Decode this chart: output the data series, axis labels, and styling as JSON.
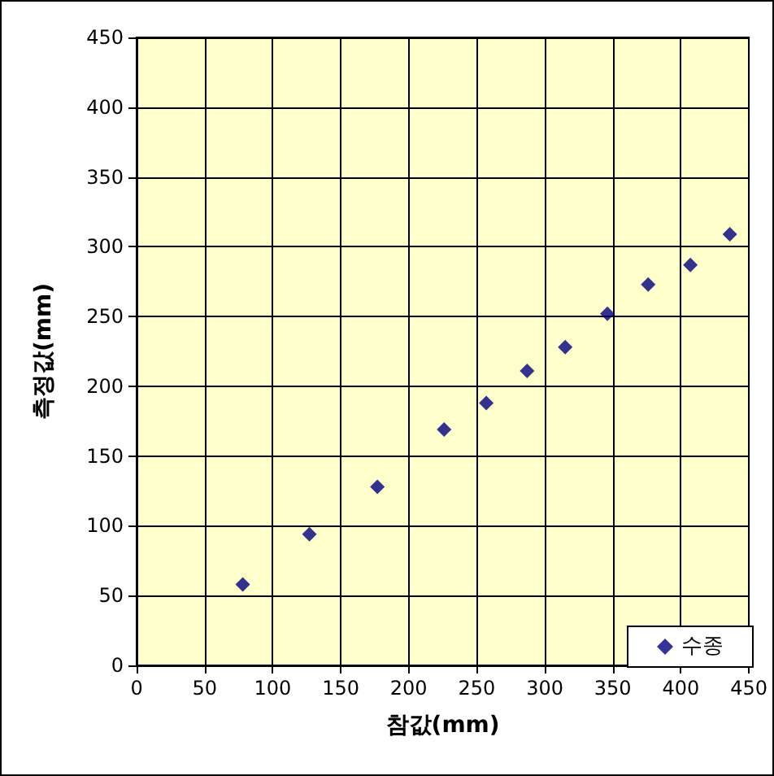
{
  "chart_data": {
    "type": "scatter",
    "xlabel": "참값(mm)",
    "ylabel": "측정값(mm)",
    "xlim": [
      0,
      450
    ],
    "xticks": [
      0,
      50,
      100,
      150,
      200,
      250,
      300,
      350,
      400,
      450
    ],
    "ylim": [
      0,
      450
    ],
    "yticks": [
      0,
      50,
      100,
      150,
      200,
      250,
      300,
      350,
      400,
      450
    ],
    "x": [
      78,
      127,
      177,
      226,
      257,
      287,
      315,
      346,
      376,
      407,
      436
    ],
    "series": [
      {
        "name": "수종",
        "color": "#000080",
        "values": [
          58,
          94,
          128,
          169,
          188,
          211,
          228,
          252,
          273,
          287,
          309
        ]
      }
    ],
    "marker": "diamond",
    "grid": true,
    "legend": "bottom right"
  }
}
